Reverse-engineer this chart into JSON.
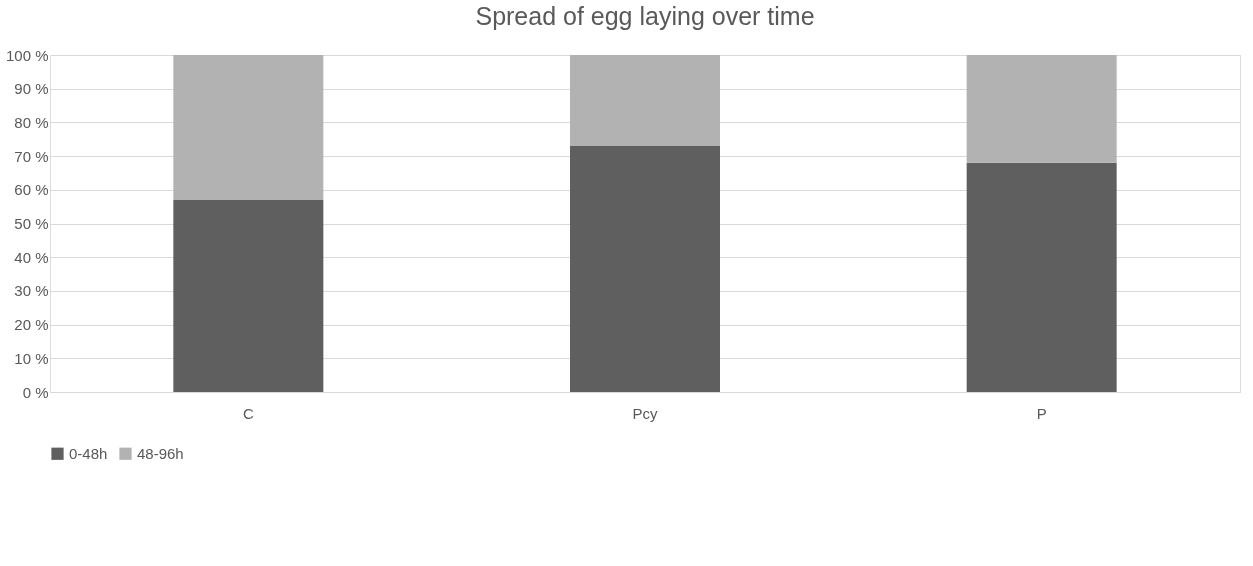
{
  "chart_data": {
    "type": "bar",
    "title": "Spread of egg laying over time",
    "categories": [
      "C",
      "Pcy",
      "P"
    ],
    "series": [
      {
        "name": "0-48h",
        "color": "#5f5f5f",
        "values": [
          57,
          73,
          68
        ]
      },
      {
        "name": "48-96h",
        "color": "#b2b2b2",
        "values": [
          43,
          27,
          32
        ]
      }
    ],
    "stacked": true,
    "ylim": [
      0,
      100
    ],
    "yticks": [
      {
        "value": 0,
        "label": "0 %"
      },
      {
        "value": 10,
        "label": "10 %"
      },
      {
        "value": 20,
        "label": "20 %"
      },
      {
        "value": 30,
        "label": "30 %"
      },
      {
        "value": 40,
        "label": "40 %"
      },
      {
        "value": 50,
        "label": "50 %"
      },
      {
        "value": 60,
        "label": "60 %"
      },
      {
        "value": 70,
        "label": "70 %"
      },
      {
        "value": 80,
        "label": "80 %"
      },
      {
        "value": 90,
        "label": "90 %"
      },
      {
        "value": 100,
        "label": "100 %"
      }
    ],
    "grid": "y",
    "legend": "bottom"
  }
}
